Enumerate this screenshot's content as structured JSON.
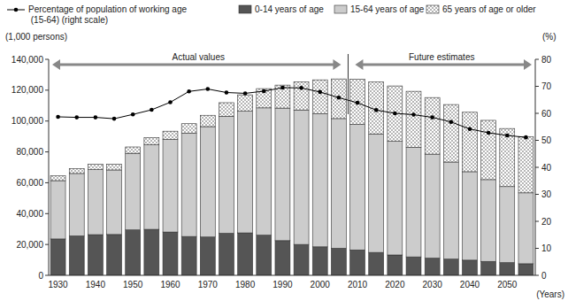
{
  "chart_data": {
    "type": "bar",
    "stacked": true,
    "grid": false,
    "legend": "top",
    "ylabel": "(1,000 persons)",
    "y2label": "(%)",
    "xlabel": "(Years)",
    "annotations": [
      "Actual values",
      "Future estimates"
    ],
    "categories": [
      "1930",
      null,
      "1940",
      null,
      "1950",
      null,
      "1960",
      null,
      "1970",
      null,
      "1980",
      null,
      "1990",
      null,
      "2000",
      null,
      "2010",
      null,
      "2020",
      null,
      "2030",
      null,
      "2040",
      null,
      "2050",
      null
    ],
    "ylim": [
      0,
      140000
    ],
    "yticks": [
      0,
      {
        "value": 20000,
        "label": "20,000"
      },
      {
        "value": 40000,
        "label": "40,000"
      },
      {
        "value": 60000,
        "label": "60,000"
      },
      {
        "value": 80000,
        "label": "80,000"
      },
      {
        "value": 100000,
        "label": "100,000"
      },
      {
        "value": 120000,
        "label": "120,000"
      },
      {
        "value": 140000,
        "label": "140,000"
      }
    ],
    "y2lim": [
      0,
      80
    ],
    "y2ticks": [
      0,
      10,
      20,
      30,
      40,
      50,
      60,
      70,
      80
    ],
    "series": [
      {
        "name": "Percentage of population of working age (15-64) (right scale)",
        "type": "line",
        "axis": "y2",
        "color": "#000000",
        "marker": "circle",
        "values": [
          58.7,
          58.5,
          58.5,
          58.0,
          59.6,
          61.3,
          64.1,
          68.1,
          69.0,
          67.7,
          67.4,
          68.2,
          69.5,
          69.4,
          67.9,
          65.8,
          63.9,
          61.2,
          60.0,
          59.5,
          58.5,
          56.8,
          54.2,
          52.8,
          51.8,
          51.1
        ]
      },
      {
        "name": "0-14 years of age",
        "type": "bar",
        "color": "#555555",
        "values": [
          23579,
          25545,
          26369,
          26477,
          29428,
          29798,
          28067,
          25166,
          24823,
          27221,
          27507,
          26033,
          22486,
          20014,
          18472,
          17521,
          16479,
          14841,
          13201,
          11956,
          11150,
          10512,
          9833,
          9036,
          8214,
          7516
        ]
      },
      {
        "name": "15-64 years of age",
        "type": "bar",
        "color": "#cccccc",
        "values": [
          37807,
          40484,
          42096,
          41821,
          49658,
          54729,
          60002,
          66928,
          71566,
          75807,
          78835,
          82506,
          85904,
          87165,
          86220,
          84092,
          81285,
          76807,
          73635,
          70960,
          67404,
          62919,
          57335,
          53000,
          49297,
          45951
        ]
      },
      {
        "name": "65 years of age or older",
        "type": "bar",
        "color": "#ffffff",
        "values": [
          3064,
          3225,
          3454,
          3700,
          4109,
          4747,
          5350,
          6181,
          7331,
          8865,
          10647,
          12468,
          14895,
          18261,
          22005,
          25672,
          29412,
          33781,
          35899,
          36354,
          36670,
          37249,
          38527,
          38407,
          37641,
          36463
        ]
      }
    ]
  }
}
